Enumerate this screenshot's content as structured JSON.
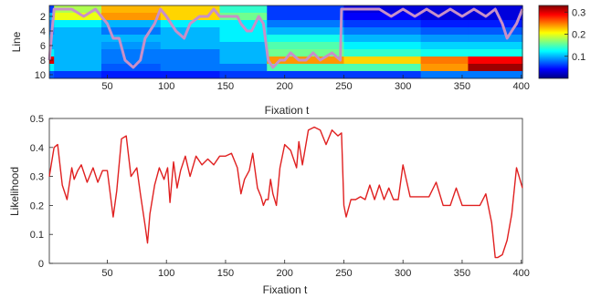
{
  "chart_data": [
    {
      "type": "heatmap",
      "xlabel": "Fixation t",
      "ylabel": "Line",
      "x_range": [
        1,
        401
      ],
      "y_range": [
        1,
        10
      ],
      "xticks": [
        50,
        100,
        150,
        200,
        250,
        300,
        350,
        400
      ],
      "yticks": [
        2,
        4,
        6,
        8,
        10
      ],
      "colorbar": {
        "ticks": [
          0.1,
          0.2,
          0.3
        ],
        "range": [
          0,
          0.33
        ],
        "colormap": "jet"
      },
      "overlay_color": "#c890c8",
      "segments": [
        {
          "t0": 1,
          "t1": 5,
          "values": [
            0.06,
            0.1,
            0.08,
            0.08,
            0.1,
            0.1,
            0.12,
            0.3,
            0.12,
            0.07
          ]
        },
        {
          "t0": 5,
          "t1": 45,
          "values": [
            0.18,
            0.2,
            0.12,
            0.1,
            0.1,
            0.1,
            0.1,
            0.1,
            0.1,
            0.06
          ]
        },
        {
          "t0": 45,
          "t1": 95,
          "values": [
            0.23,
            0.24,
            0.1,
            0.08,
            0.1,
            0.09,
            0.08,
            0.08,
            0.07,
            0.05
          ]
        },
        {
          "t0": 95,
          "t1": 145,
          "values": [
            0.22,
            0.22,
            0.12,
            0.1,
            0.1,
            0.1,
            0.08,
            0.08,
            0.08,
            0.05
          ]
        },
        {
          "t0": 145,
          "t1": 185,
          "values": [
            0.14,
            0.16,
            0.12,
            0.12,
            0.12,
            0.1,
            0.1,
            0.1,
            0.08,
            0.06
          ]
        },
        {
          "t0": 185,
          "t1": 250,
          "values": [
            0.06,
            0.06,
            0.08,
            0.1,
            0.13,
            0.15,
            0.16,
            0.24,
            0.15,
            0.06
          ]
        },
        {
          "t0": 250,
          "t1": 315,
          "values": [
            0.03,
            0.04,
            0.06,
            0.08,
            0.1,
            0.12,
            0.14,
            0.22,
            0.15,
            0.06
          ]
        },
        {
          "t0": 315,
          "t1": 355,
          "values": [
            0.03,
            0.03,
            0.05,
            0.07,
            0.09,
            0.11,
            0.13,
            0.25,
            0.24,
            0.08
          ]
        },
        {
          "t0": 355,
          "t1": 401,
          "values": [
            0.03,
            0.03,
            0.05,
            0.07,
            0.09,
            0.11,
            0.13,
            0.29,
            0.32,
            0.08
          ]
        }
      ],
      "overlay_path": [
        [
          1,
          8
        ],
        [
          5,
          1
        ],
        [
          20,
          1
        ],
        [
          30,
          2
        ],
        [
          40,
          1
        ],
        [
          45,
          2
        ],
        [
          50,
          3
        ],
        [
          55,
          5
        ],
        [
          60,
          5
        ],
        [
          65,
          8
        ],
        [
          72,
          9
        ],
        [
          78,
          8
        ],
        [
          82,
          5
        ],
        [
          90,
          3
        ],
        [
          95,
          1
        ],
        [
          100,
          2
        ],
        [
          108,
          4
        ],
        [
          115,
          5
        ],
        [
          120,
          3
        ],
        [
          128,
          2
        ],
        [
          135,
          2
        ],
        [
          140,
          1
        ],
        [
          145,
          2
        ],
        [
          150,
          2
        ],
        [
          155,
          2
        ],
        [
          160,
          2
        ],
        [
          163,
          3
        ],
        [
          168,
          4
        ],
        [
          172,
          4
        ],
        [
          178,
          2
        ],
        [
          182,
          3
        ],
        [
          186,
          8
        ],
        [
          190,
          9
        ],
        [
          196,
          8
        ],
        [
          200,
          8
        ],
        [
          205,
          7
        ],
        [
          212,
          8
        ],
        [
          218,
          8
        ],
        [
          224,
          7
        ],
        [
          230,
          8
        ],
        [
          240,
          7
        ],
        [
          247,
          8
        ],
        [
          248,
          1
        ],
        [
          270,
          1
        ],
        [
          280,
          1
        ],
        [
          290,
          2
        ],
        [
          300,
          1
        ],
        [
          310,
          2
        ],
        [
          320,
          1
        ],
        [
          330,
          2
        ],
        [
          340,
          1
        ],
        [
          350,
          2
        ],
        [
          360,
          1
        ],
        [
          370,
          2
        ],
        [
          378,
          1
        ],
        [
          384,
          3
        ],
        [
          388,
          5
        ],
        [
          392,
          4
        ],
        [
          396,
          3
        ],
        [
          401,
          1
        ]
      ]
    },
    {
      "type": "line",
      "xlabel": "Fixation t",
      "ylabel": "Likelihood",
      "xlim": [
        1,
        401
      ],
      "ylim": [
        0,
        0.5
      ],
      "xticks": [
        50,
        100,
        150,
        200,
        250,
        300,
        350,
        400
      ],
      "yticks": [
        0,
        0.1,
        0.2,
        0.3,
        0.4,
        0.5
      ],
      "color": "#e02020",
      "x": [
        1,
        5,
        8,
        12,
        16,
        20,
        22,
        25,
        28,
        33,
        38,
        42,
        46,
        50,
        55,
        58,
        62,
        66,
        70,
        75,
        78,
        82,
        84,
        86,
        90,
        94,
        98,
        101,
        103,
        106,
        109,
        112,
        116,
        120,
        125,
        130,
        135,
        140,
        145,
        150,
        155,
        160,
        163,
        166,
        170,
        173,
        177,
        180,
        182,
        184,
        186,
        188,
        190,
        193,
        196,
        200,
        205,
        210,
        212,
        215,
        220,
        225,
        230,
        235,
        240,
        245,
        248,
        250,
        252,
        256,
        260,
        264,
        268,
        272,
        276,
        280,
        284,
        288,
        292,
        296,
        300,
        306,
        312,
        318,
        322,
        328,
        334,
        340,
        345,
        350,
        355,
        360,
        365,
        370,
        375,
        378,
        380,
        384,
        388,
        392,
        396,
        401
      ],
      "y": [
        0.3,
        0.4,
        0.41,
        0.27,
        0.22,
        0.33,
        0.29,
        0.32,
        0.34,
        0.28,
        0.33,
        0.28,
        0.32,
        0.32,
        0.16,
        0.25,
        0.43,
        0.44,
        0.3,
        0.33,
        0.24,
        0.13,
        0.07,
        0.17,
        0.27,
        0.33,
        0.29,
        0.33,
        0.21,
        0.35,
        0.26,
        0.32,
        0.37,
        0.3,
        0.37,
        0.34,
        0.36,
        0.34,
        0.37,
        0.37,
        0.38,
        0.33,
        0.24,
        0.29,
        0.32,
        0.38,
        0.26,
        0.23,
        0.2,
        0.22,
        0.22,
        0.29,
        0.24,
        0.2,
        0.33,
        0.41,
        0.39,
        0.33,
        0.42,
        0.34,
        0.46,
        0.47,
        0.46,
        0.41,
        0.46,
        0.44,
        0.45,
        0.2,
        0.16,
        0.22,
        0.22,
        0.23,
        0.22,
        0.27,
        0.22,
        0.27,
        0.22,
        0.26,
        0.22,
        0.22,
        0.34,
        0.23,
        0.23,
        0.23,
        0.23,
        0.28,
        0.2,
        0.2,
        0.26,
        0.2,
        0.2,
        0.2,
        0.2,
        0.24,
        0.14,
        0.02,
        0.02,
        0.03,
        0.08,
        0.17,
        0.33,
        0.26
      ]
    }
  ]
}
